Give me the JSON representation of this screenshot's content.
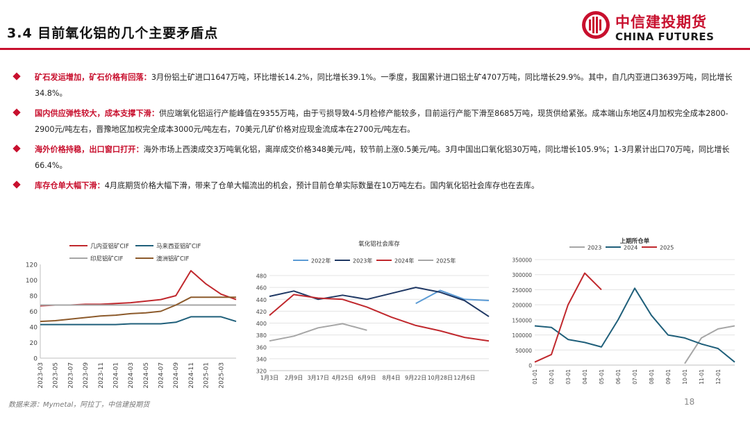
{
  "header": {
    "title": "3.4 目前氧化铝的几个主要矛盾点",
    "logo_cn": "中信建投期货",
    "logo_en": "CHINA FUTURES"
  },
  "bullets": [
    {
      "lead": "矿石发运增加，矿石价格有回落：",
      "text": "3月份铝土矿进口1647万吨，环比增长14.2%，同比增长39.1%。一季度，我国累计进口铝土矿4707万吨，同比增长29.9%。其中，自几内亚进口3639万吨，同比增长34.8%。"
    },
    {
      "lead": "国内供应弹性较大，成本支撑下滑：",
      "text": "供应端氧化铝运行产能峰值在9355万吨，由于亏损导致4-5月检修产能较多，目前运行产能下滑至8685万吨，现货供给紧张。成本端山东地区4月加权完全成本2800-2900元/吨左右，晋豫地区加权完全成本3000元/吨左右，70美元几矿价格对应现金流成本在2700元/吨左右。"
    },
    {
      "lead": "海外价格持稳，出口窗口打开：",
      "text": "海外市场上西澳成交3万吨氧化铝，离岸成交价格348美元/吨，较节前上涨0.5美元/吨。3月中国出口氧化铝30万吨，同比增长105.9%；1-3月累计出口70万吨，同比增长66.4%。"
    },
    {
      "lead": "库存仓单大幅下滑：",
      "text": "4月底期货价格大幅下滑，带来了仓单大幅流出的机会，预计目前仓单实际数量在10万吨左右。国内氧化铝社会库存也在去库。"
    }
  ],
  "footer": {
    "source": "数据来源：Mymetal，阿拉丁，中信建投期货",
    "page": "18"
  },
  "chart_data": [
    {
      "type": "line",
      "title": "",
      "x": [
        "2023-03",
        "2023-05",
        "2023-07",
        "2023-09",
        "2023-11",
        "2024-01",
        "2024-03",
        "2024-05",
        "2024-07",
        "2024-09",
        "2024-11",
        "2025-01",
        "2025-03",
        "2025-04"
      ],
      "x_tick_labels": [
        "2023-03",
        "2023-05",
        "2023-07",
        "2023-09",
        "2023-11",
        "2024-01",
        "2024-03",
        "2024-05",
        "2024-07",
        "2024-09",
        "2024-11",
        "2025-01",
        "2025-03"
      ],
      "ylim": [
        0,
        120
      ],
      "y_ticks": [
        0,
        20,
        40,
        60,
        80,
        100,
        120
      ],
      "series": [
        {
          "name": "几内亚铝矿CIF",
          "color": "#c0282d",
          "values": [
            67,
            68,
            68,
            69,
            69,
            70,
            71,
            73,
            75,
            80,
            112,
            95,
            82,
            75
          ]
        },
        {
          "name": "马来西亚铝矿CIF",
          "color": "#1f5f7a",
          "values": [
            43,
            43,
            43,
            43,
            43,
            43,
            44,
            44,
            44,
            46,
            53,
            53,
            53,
            47
          ]
        },
        {
          "name": "印尼铝矿CIF",
          "color": "#a6a6a6",
          "values": [
            68,
            68,
            68,
            68,
            68,
            68,
            68,
            68,
            68,
            68,
            68,
            68,
            68,
            68
          ]
        },
        {
          "name": "澳洲铝矿CIF",
          "color": "#8c5a2b",
          "values": [
            47,
            48,
            50,
            52,
            54,
            55,
            57,
            58,
            60,
            68,
            78,
            78,
            78,
            78
          ]
        }
      ]
    },
    {
      "type": "line",
      "title": "氧化铝社会库存",
      "x": [
        "1月3日",
        "2月9日",
        "3月17日",
        "4月25日",
        "6月9日",
        "8月4日",
        "9月22日",
        "10月28日",
        "12月6日",
        "12月31日"
      ],
      "x_tick_labels": [
        "1月3日",
        "2月9日",
        "3月17日",
        "4月25日",
        "6月9日",
        "8月4日",
        "9月22日",
        "10月28日",
        "12月6日"
      ],
      "ylim": [
        320,
        480
      ],
      "y_ticks": [
        320,
        340,
        360,
        380,
        400,
        420,
        440,
        460,
        480
      ],
      "series": [
        {
          "name": "2022年",
          "color": "#5b9bd5",
          "values": [
            null,
            null,
            null,
            null,
            null,
            null,
            433,
            455,
            440,
            438
          ]
        },
        {
          "name": "2023年",
          "color": "#1f3864",
          "values": [
            445,
            454,
            440,
            447,
            440,
            450,
            460,
            452,
            438,
            411
          ]
        },
        {
          "name": "2024年",
          "color": "#c0282d",
          "values": [
            413,
            448,
            442,
            440,
            427,
            410,
            396,
            387,
            376,
            370
          ]
        },
        {
          "name": "2025年",
          "color": "#a6a6a6",
          "values": [
            370,
            378,
            392,
            399,
            388,
            null,
            null,
            null,
            null,
            null
          ]
        }
      ]
    },
    {
      "type": "line",
      "title": "上期所仓单",
      "x": [
        "01-01",
        "02-01",
        "03-01",
        "04-01",
        "05-01",
        "06-01",
        "07-01",
        "08-01",
        "09-01",
        "10-01",
        "11-01",
        "12-01",
        "12-31"
      ],
      "x_tick_labels": [
        "01-01",
        "02-01",
        "03-01",
        "04-01",
        "05-01",
        "06-01",
        "07-01",
        "08-01",
        "09-01",
        "10-01",
        "11-01",
        "12-01"
      ],
      "ylim": [
        0,
        350000
      ],
      "y_ticks": [
        0,
        50000,
        100000,
        150000,
        200000,
        250000,
        300000,
        350000
      ],
      "series": [
        {
          "name": "2023",
          "color": "#a6a6a6",
          "values": [
            null,
            null,
            null,
            null,
            null,
            null,
            null,
            null,
            null,
            5000,
            90000,
            120000,
            130000
          ]
        },
        {
          "name": "2024",
          "color": "#1f5f7a",
          "values": [
            130000,
            125000,
            85000,
            75000,
            60000,
            150000,
            255000,
            165000,
            100000,
            90000,
            70000,
            55000,
            10000
          ]
        },
        {
          "name": "2025",
          "color": "#c0282d",
          "values": [
            10000,
            35000,
            200000,
            305000,
            250000,
            null,
            null,
            null,
            null,
            null,
            null,
            null,
            null
          ]
        }
      ]
    }
  ]
}
